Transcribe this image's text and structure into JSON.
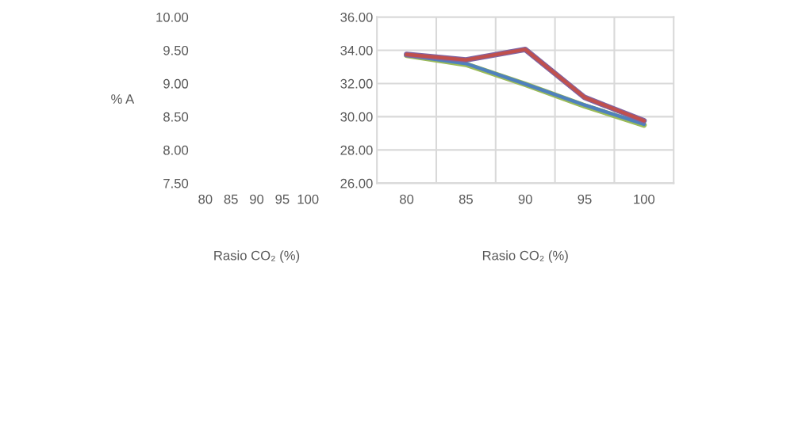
{
  "chart_data": [
    {
      "type": "line",
      "ylabel": "% A",
      "xlabel": "Rasio CO₂ (%)",
      "categories": [
        "80",
        "85",
        "90",
        "95",
        "100"
      ],
      "ylim": [
        7.5,
        10
      ],
      "yticks": [
        {
          "value": 7.5,
          "label": "7.50"
        },
        {
          "value": 8,
          "label": "8.00"
        },
        {
          "value": 8.5,
          "label": "8.50"
        },
        {
          "value": 9,
          "label": "9.00"
        },
        {
          "value": 9.5,
          "label": "9.50"
        },
        {
          "value": 10,
          "label": "10.00"
        }
      ],
      "grid": false
    },
    {
      "type": "line",
      "xlabel": "Rasio CO₂ (%)",
      "categories": [
        "80",
        "85",
        "90",
        "95",
        "100"
      ],
      "ylim": [
        26,
        36
      ],
      "yticks": [
        {
          "value": 26,
          "label": "26.00"
        },
        {
          "value": 28,
          "label": "28.00"
        },
        {
          "value": 30,
          "label": "30.00"
        },
        {
          "value": 32,
          "label": "32.00"
        },
        {
          "value": 34,
          "label": "34.00"
        },
        {
          "value": 36,
          "label": "36.00"
        }
      ],
      "grid": true,
      "series": [
        {
          "color": "#9bbb59",
          "values": [
            33.7,
            33.15,
            31.95,
            30.65,
            29.5
          ]
        },
        {
          "color": "#4f81bd",
          "values": [
            33.7,
            33.2,
            31.97,
            30.7,
            29.55
          ]
        },
        {
          "color": "#8064a2",
          "values": [
            33.75,
            33.42,
            34.05,
            31.16,
            29.76
          ]
        },
        {
          "color": "#c0504d",
          "values": [
            33.75,
            33.42,
            34.05,
            31.16,
            29.76
          ]
        }
      ]
    }
  ]
}
